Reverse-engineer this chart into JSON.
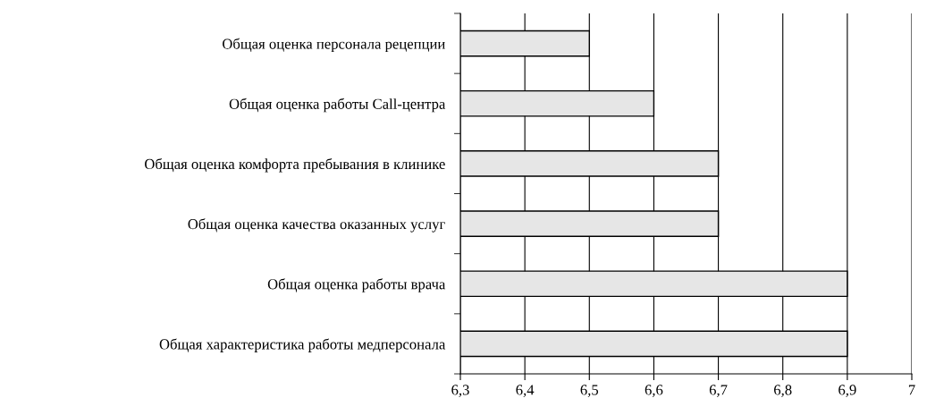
{
  "chart_data": {
    "type": "bar",
    "orientation": "horizontal",
    "categories": [
      "Общая оценка персонала рецепции",
      "Общая оценка работы Call-центра",
      "Общая оценка комфорта пребывания в клинике",
      "Общая оценка качества оказанных услуг",
      "Общая оценка работы врача",
      "Общая характеристика работы медперсонала"
    ],
    "values": [
      6.5,
      6.6,
      6.7,
      6.7,
      6.9,
      6.9
    ],
    "color": "#e6e6e6",
    "xlim": [
      6.3,
      7
    ],
    "xticks": [
      {
        "value": 6.3,
        "label": "6,3"
      },
      {
        "value": 6.4,
        "label": "6,4"
      },
      {
        "value": 6.5,
        "label": "6,5"
      },
      {
        "value": 6.6,
        "label": "6,6"
      },
      {
        "value": 6.7,
        "label": "6,7"
      },
      {
        "value": 6.8,
        "label": "6,8"
      },
      {
        "value": 6.9,
        "label": "6,9"
      },
      {
        "value": 7,
        "label": "7"
      }
    ],
    "grid": "x"
  }
}
